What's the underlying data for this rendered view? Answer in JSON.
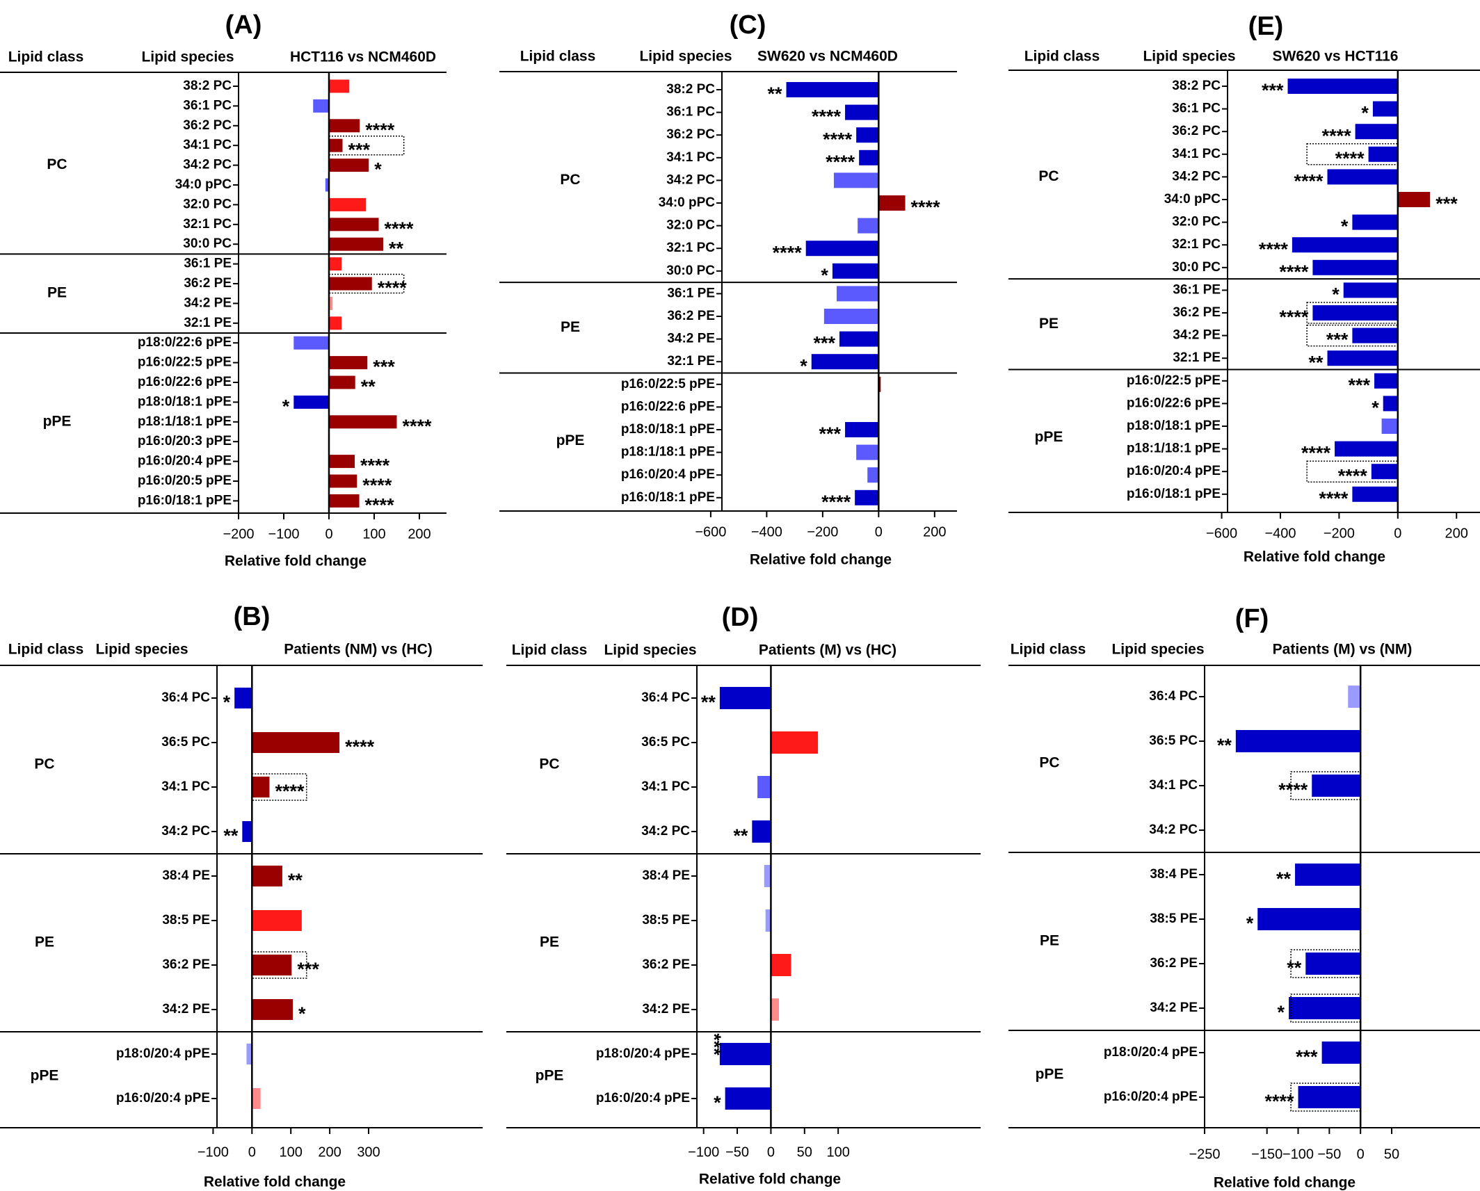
{
  "colors": {
    "up_sig": "#990000",
    "up_ns": "#ff1a1a",
    "up_weak": "#ff8a8a",
    "down_sig": "#0000c8",
    "down_ns": "#5a5aff",
    "down_weak": "#9a9aff"
  },
  "headers": {
    "lipid_class": "Lipid class",
    "lipid_species": "Lipid species"
  },
  "chart_data": [
    {
      "id": "A",
      "panel_label": "(A)",
      "type": "bar",
      "orientation": "horizontal",
      "title": "HCT116 vs NCM460D",
      "xlabel": "Relative fold change",
      "xlim": [
        -200,
        260
      ],
      "xticks": [
        -200,
        -100,
        0,
        100,
        200
      ],
      "xtick_labels": [
        "−200",
        "−100",
        "0",
        "100",
        "200"
      ],
      "groups": [
        {
          "name": "PC",
          "items": [
            {
              "label": "38:2 PC",
              "value": 45,
              "color": "up_ns",
              "star": ""
            },
            {
              "label": "36:1 PC",
              "value": -35,
              "color": "down_ns",
              "star": ""
            },
            {
              "label": "36:2 PC",
              "value": 68,
              "color": "up_sig",
              "star": "****"
            },
            {
              "label": "34:1 PC",
              "value": 30,
              "color": "up_sig",
              "star": "***",
              "boxed": true
            },
            {
              "label": "34:2 PC",
              "value": 88,
              "color": "up_sig",
              "star": "*"
            },
            {
              "label": "34:0 pPC",
              "value": -8,
              "color": "down_ns",
              "star": ""
            },
            {
              "label": "32:0 PC",
              "value": 82,
              "color": "up_ns",
              "star": ""
            },
            {
              "label": "32:1 PC",
              "value": 110,
              "color": "up_sig",
              "star": "****"
            },
            {
              "label": "30:0 PC",
              "value": 120,
              "color": "up_sig",
              "star": "**"
            }
          ]
        },
        {
          "name": "PE",
          "items": [
            {
              "label": "36:1 PE",
              "value": 28,
              "color": "up_ns",
              "star": ""
            },
            {
              "label": "36:2 PE",
              "value": 95,
              "color": "up_sig",
              "star": "****",
              "boxed": true
            },
            {
              "label": "34:2 PE",
              "value": 8,
              "color": "up_weak",
              "star": ""
            },
            {
              "label": "32:1 PE",
              "value": 28,
              "color": "up_ns",
              "star": ""
            }
          ]
        },
        {
          "name": "pPE",
          "items": [
            {
              "label": "p18:0/22:6 pPE",
              "value": -78,
              "color": "down_ns",
              "star": ""
            },
            {
              "label": "p16:0/22:5 pPE",
              "value": 85,
              "color": "up_sig",
              "star": "***"
            },
            {
              "label": "p16:0/22:6 pPE",
              "value": 58,
              "color": "up_sig",
              "star": "**"
            },
            {
              "label": "p18:0/18:1 pPE",
              "value": -78,
              "color": "down_sig",
              "star": "*"
            },
            {
              "label": "p18:1/18:1 pPE",
              "value": 150,
              "color": "up_sig",
              "star": "****"
            },
            {
              "label": "p16:0/20:3 pPE",
              "value": 0,
              "color": "up_sig",
              "star": ""
            },
            {
              "label": "p16:0/20:4 pPE",
              "value": 57,
              "color": "up_sig",
              "star": "****"
            },
            {
              "label": "p16:0/20:5 pPE",
              "value": 62,
              "color": "up_sig",
              "star": "****"
            },
            {
              "label": "p16:0/18:1 pPE",
              "value": 67,
              "color": "up_sig",
              "star": "****"
            }
          ]
        }
      ]
    },
    {
      "id": "B",
      "panel_label": "(B)",
      "type": "bar",
      "orientation": "horizontal",
      "title": "Patients (NM) vs  (HC)",
      "xlabel": "Relative fold change",
      "xlim": [
        -90,
        300
      ],
      "xticks": [
        -100,
        0,
        100,
        200,
        300
      ],
      "xtick_labels": [
        "−100",
        "0",
        "100",
        "200",
        "300"
      ],
      "groups": [
        {
          "name": "PC",
          "items": [
            {
              "label": "36:4 PC",
              "value": -45,
              "color": "down_sig",
              "star": "*"
            },
            {
              "label": "36:5 PC",
              "value": 225,
              "color": "up_sig",
              "star": "****"
            },
            {
              "label": "34:1 PC",
              "value": 45,
              "color": "up_sig",
              "star": "****",
              "boxed": true
            },
            {
              "label": "34:2 PC",
              "value": -25,
              "color": "down_sig",
              "star": "**"
            }
          ]
        },
        {
          "name": "PE",
          "items": [
            {
              "label": "38:4 PE",
              "value": 78,
              "color": "up_sig",
              "star": "**"
            },
            {
              "label": "38:5 PE",
              "value": 128,
              "color": "up_ns",
              "star": ""
            },
            {
              "label": "36:2 PE",
              "value": 102,
              "color": "up_sig",
              "star": "***",
              "boxed": true
            },
            {
              "label": "34:2 PE",
              "value": 105,
              "color": "up_sig",
              "star": "*"
            }
          ]
        },
        {
          "name": "pPE",
          "items": [
            {
              "label": "p18:0/20:4 pPE",
              "value": -14,
              "color": "down_weak",
              "star": ""
            },
            {
              "label": "p16:0/20:4 pPE",
              "value": 22,
              "color": "up_weak",
              "star": ""
            }
          ]
        }
      ]
    },
    {
      "id": "C",
      "panel_label": "(C)",
      "type": "bar",
      "orientation": "horizontal",
      "title": "SW620 vs NCM460D",
      "xlabel": "Relative fold change",
      "xlim": [
        -560,
        280
      ],
      "xticks": [
        -600,
        -400,
        -200,
        0,
        200
      ],
      "xtick_labels": [
        "−600",
        "−400",
        "−200",
        "0",
        "200"
      ],
      "groups": [
        {
          "name": "PC",
          "items": [
            {
              "label": "38:2 PC",
              "value": -330,
              "color": "down_sig",
              "star": "**"
            },
            {
              "label": "36:1 PC",
              "value": -120,
              "color": "down_sig",
              "star": "****"
            },
            {
              "label": "36:2 PC",
              "value": -80,
              "color": "down_sig",
              "star": "****"
            },
            {
              "label": "34:1 PC",
              "value": -70,
              "color": "down_sig",
              "star": "****"
            },
            {
              "label": "34:2 PC",
              "value": -160,
              "color": "down_ns",
              "star": ""
            },
            {
              "label": "34:0 pPC",
              "value": 95,
              "color": "up_sig",
              "star": "****"
            },
            {
              "label": "32:0 PC",
              "value": -75,
              "color": "down_ns",
              "star": ""
            },
            {
              "label": "32:1 PC",
              "value": -260,
              "color": "down_sig",
              "star": "****"
            },
            {
              "label": "30:0 PC",
              "value": -165,
              "color": "down_sig",
              "star": "*"
            }
          ]
        },
        {
          "name": "PE",
          "items": [
            {
              "label": "36:1 PE",
              "value": -150,
              "color": "down_ns",
              "star": ""
            },
            {
              "label": "36:2 PE",
              "value": -195,
              "color": "down_ns",
              "star": ""
            },
            {
              "label": "34:2 PE",
              "value": -140,
              "color": "down_sig",
              "star": "***"
            },
            {
              "label": "32:1 PE",
              "value": -240,
              "color": "down_sig",
              "star": "*"
            }
          ]
        },
        {
          "name": "pPE",
          "items": [
            {
              "label": "p16:0/22:5 pPE",
              "value": 5,
              "color": "up_sig",
              "star": ""
            },
            {
              "label": "p16:0/22:6 pPE",
              "value": 0,
              "color": "up_sig",
              "star": ""
            },
            {
              "label": "p18:0/18:1 pPE",
              "value": -120,
              "color": "down_sig",
              "star": "***"
            },
            {
              "label": "p18:1/18:1 pPE",
              "value": -80,
              "color": "down_ns",
              "star": ""
            },
            {
              "label": "p16:0/20:4 pPE",
              "value": -40,
              "color": "down_ns",
              "star": ""
            },
            {
              "label": "p16:0/18:1 pPE",
              "value": -85,
              "color": "down_sig",
              "star": "****"
            }
          ]
        }
      ]
    },
    {
      "id": "D",
      "panel_label": "(D)",
      "type": "bar",
      "orientation": "horizontal",
      "title": "Patients (M) vs  (HC)",
      "xlabel": "Relative fold change",
      "xlim": [
        -110,
        105
      ],
      "xticks": [
        -100,
        -50,
        0,
        50,
        100
      ],
      "xtick_labels": [
        "−100",
        "−50",
        "0",
        "50",
        "100"
      ],
      "groups": [
        {
          "name": "PC",
          "items": [
            {
              "label": "36:4 PC",
              "value": -76,
              "color": "down_sig",
              "star": "**"
            },
            {
              "label": "36:5 PC",
              "value": 70,
              "color": "up_ns",
              "star": ""
            },
            {
              "label": "34:1 PC",
              "value": -20,
              "color": "down_ns",
              "star": ""
            },
            {
              "label": "34:2 PC",
              "value": -28,
              "color": "down_sig",
              "star": "**"
            }
          ]
        },
        {
          "name": "PE",
          "items": [
            {
              "label": "38:4 PE",
              "value": -10,
              "color": "down_weak",
              "star": ""
            },
            {
              "label": "38:5 PE",
              "value": -8,
              "color": "down_weak",
              "star": ""
            },
            {
              "label": "36:2 PE",
              "value": 30,
              "color": "up_ns",
              "star": ""
            },
            {
              "label": "34:2 PE",
              "value": 12,
              "color": "up_weak",
              "star": ""
            }
          ]
        },
        {
          "name": "pPE",
          "items": [
            {
              "label": "p18:0/20:4 pPE",
              "value": -76,
              "color": "down_sig",
              "star": "***",
              "vertical": true
            },
            {
              "label": "p16:0/20:4 pPE",
              "value": -68,
              "color": "down_sig",
              "star": "*"
            }
          ]
        }
      ]
    },
    {
      "id": "E",
      "panel_label": "(E)",
      "type": "bar",
      "orientation": "horizontal",
      "title": "SW620 vs HCT116",
      "xlabel": "Relative fold change",
      "xlim": [
        -580,
        280
      ],
      "xticks": [
        -600,
        -400,
        -200,
        0,
        200
      ],
      "xtick_labels": [
        "−600",
        "−400",
        "−200",
        "0",
        "200"
      ],
      "groups": [
        {
          "name": "PC",
          "items": [
            {
              "label": "38:2 PC",
              "value": -375,
              "color": "down_sig",
              "star": "***"
            },
            {
              "label": "36:1 PC",
              "value": -85,
              "color": "down_sig",
              "star": "*"
            },
            {
              "label": "36:2 PC",
              "value": -145,
              "color": "down_sig",
              "star": "****"
            },
            {
              "label": "34:1 PC",
              "value": -100,
              "color": "down_sig",
              "star": "****",
              "boxed": true
            },
            {
              "label": "34:2 PC",
              "value": -240,
              "color": "down_sig",
              "star": "****"
            },
            {
              "label": "34:0 pPC",
              "value": 110,
              "color": "up_sig",
              "star": "***"
            },
            {
              "label": "32:0 PC",
              "value": -155,
              "color": "down_sig",
              "star": "*"
            },
            {
              "label": "32:1 PC",
              "value": -360,
              "color": "down_sig",
              "star": "****"
            },
            {
              "label": "30:0 PC",
              "value": -290,
              "color": "down_sig",
              "star": "****"
            }
          ]
        },
        {
          "name": "PE",
          "items": [
            {
              "label": "36:1 PE",
              "value": -185,
              "color": "down_sig",
              "star": "*"
            },
            {
              "label": "36:2 PE",
              "value": -290,
              "color": "down_sig",
              "star": "****",
              "boxed": true
            },
            {
              "label": "34:2 PE",
              "value": -155,
              "color": "down_sig",
              "star": "***",
              "boxed": true
            },
            {
              "label": "32:1 PE",
              "value": -240,
              "color": "down_sig",
              "star": "**"
            }
          ]
        },
        {
          "name": "pPE",
          "items": [
            {
              "label": "p16:0/22:5 pPE",
              "value": -80,
              "color": "down_sig",
              "star": "***"
            },
            {
              "label": "p16:0/22:6 pPE",
              "value": -50,
              "color": "down_sig",
              "star": "*"
            },
            {
              "label": "p18:0/18:1 pPE",
              "value": -55,
              "color": "down_ns",
              "star": ""
            },
            {
              "label": "p18:1/18:1 pPE",
              "value": -215,
              "color": "down_sig",
              "star": "****"
            },
            {
              "label": "p16:0/20:4 pPE",
              "value": -90,
              "color": "down_sig",
              "star": "****",
              "boxed": true
            },
            {
              "label": "p16:0/18:1 pPE",
              "value": -155,
              "color": "down_sig",
              "star": "****"
            }
          ]
        }
      ]
    },
    {
      "id": "F",
      "panel_label": "(F)",
      "type": "bar",
      "orientation": "horizontal",
      "title": "Patients (M) vs  (NM)",
      "xlabel": "Relative fold change",
      "xlim": [
        -250,
        60
      ],
      "xticks": [
        -250,
        -150,
        -100,
        -50,
        0,
        50
      ],
      "xtick_labels": [
        "−250",
        "−150",
        "−100",
        "−50",
        "0",
        "50"
      ],
      "groups": [
        {
          "name": "PC",
          "items": [
            {
              "label": "36:4 PC",
              "value": -20,
              "color": "down_weak",
              "star": ""
            },
            {
              "label": "36:5 PC",
              "value": -200,
              "color": "down_sig",
              "star": "**"
            },
            {
              "label": "34:1 PC",
              "value": -78,
              "color": "down_sig",
              "star": "****",
              "boxed": true
            },
            {
              "label": "34:2 PC",
              "value": 0,
              "color": "down_sig",
              "star": ""
            }
          ]
        },
        {
          "name": "PE",
          "items": [
            {
              "label": "38:4 PE",
              "value": -105,
              "color": "down_sig",
              "star": "**"
            },
            {
              "label": "38:5 PE",
              "value": -165,
              "color": "down_sig",
              "star": "*"
            },
            {
              "label": "36:2 PE",
              "value": -88,
              "color": "down_sig",
              "star": "**",
              "boxed": true
            },
            {
              "label": "34:2 PE",
              "value": -115,
              "color": "down_sig",
              "star": "*",
              "boxed": true
            }
          ]
        },
        {
          "name": "pPE",
          "items": [
            {
              "label": "p18:0/20:4 pPE",
              "value": -62,
              "color": "down_sig",
              "star": "***"
            },
            {
              "label": "p16:0/20:4 pPE",
              "value": -100,
              "color": "down_sig",
              "star": "****",
              "boxed": true
            }
          ]
        }
      ]
    }
  ]
}
